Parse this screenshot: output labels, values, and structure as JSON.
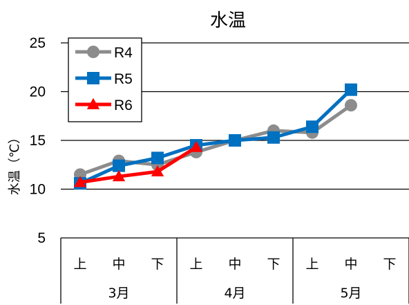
{
  "chart_data": {
    "type": "line",
    "title": "水温",
    "xlabel": "",
    "ylabel": "水温（℃）",
    "ylim": [
      5,
      25
    ],
    "yticks": [
      5,
      10,
      15,
      20,
      25
    ],
    "grid": true,
    "legend_position": "top-left",
    "categories": [
      "上",
      "中",
      "下",
      "上",
      "中",
      "下",
      "上",
      "中",
      "下"
    ],
    "groups": [
      {
        "label": "3月",
        "span": 3
      },
      {
        "label": "4月",
        "span": 3
      },
      {
        "label": "5月",
        "span": 3
      }
    ],
    "series": [
      {
        "name": "R4",
        "color": "#8c8c8c",
        "marker": "circle",
        "values": [
          11.5,
          12.9,
          12.5,
          13.8,
          15.0,
          16.0,
          15.8,
          18.6,
          null
        ]
      },
      {
        "name": "R5",
        "color": "#0070c0",
        "marker": "square",
        "values": [
          10.6,
          12.4,
          13.2,
          14.5,
          15.0,
          15.3,
          16.4,
          20.2,
          null
        ]
      },
      {
        "name": "R6",
        "color": "#ff0000",
        "marker": "triangle",
        "values": [
          10.7,
          11.3,
          11.8,
          14.3,
          null,
          null,
          null,
          null,
          null
        ]
      }
    ]
  }
}
